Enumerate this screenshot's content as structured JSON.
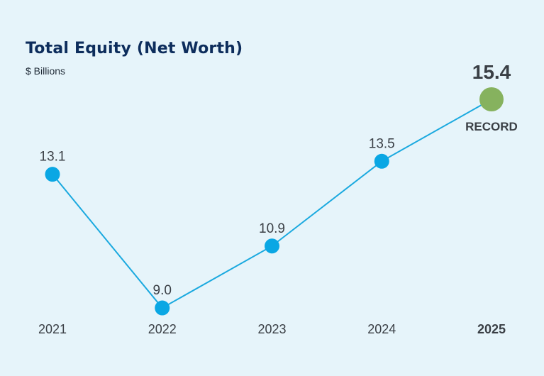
{
  "title": "Total Equity (Net Worth)",
  "subtitle": "$ Billions",
  "colors": {
    "background": "#e6f4fa",
    "line": "#1aa9df",
    "point": "#0aa7e4",
    "highlight_point": "#86b25e",
    "highlight_text": "#e57a25",
    "title": "#0d2d5c"
  },
  "chart_data": {
    "type": "line",
    "title": "Total Equity (Net Worth)",
    "subtitle": "$ Billions",
    "categories": [
      "2021",
      "2022",
      "2023",
      "2024",
      "2025"
    ],
    "values": [
      13.1,
      9.0,
      10.9,
      13.5,
      15.4
    ],
    "value_labels": [
      "13.1",
      "9.0",
      "10.9",
      "13.5",
      "15.4"
    ],
    "highlight": {
      "category": "2025",
      "value_label": "15.4",
      "annotation": "RECORD"
    },
    "ylim": [
      8.0,
      15.4
    ],
    "grid": false,
    "legend": "none"
  }
}
